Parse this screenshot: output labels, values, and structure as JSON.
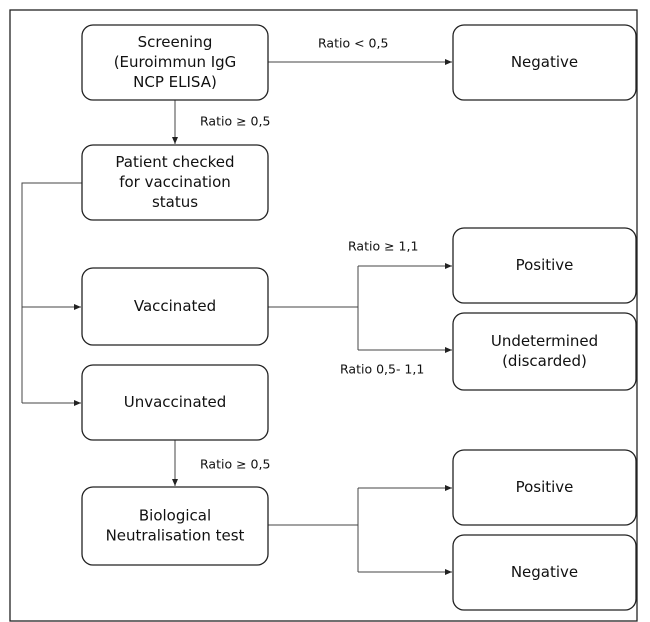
{
  "nodes": [
    {
      "lines": [
        "Screening",
        "(Euroimmun IgG",
        "NCP ELISA)"
      ]
    },
    {
      "lines": [
        "Negative"
      ]
    },
    {
      "lines": [
        "Patient checked",
        "for vaccination",
        "status"
      ]
    },
    {
      "lines": [
        "Vaccinated"
      ]
    },
    {
      "lines": [
        "Unvaccinated"
      ]
    },
    {
      "lines": [
        "Positive"
      ]
    },
    {
      "lines": [
        "Undetermined",
        "(discarded)"
      ]
    },
    {
      "lines": [
        "Biological",
        "Neutralisation test"
      ]
    },
    {
      "lines": [
        "Positive"
      ]
    },
    {
      "lines": [
        "Negative"
      ]
    }
  ],
  "edges": [
    {
      "label": "Ratio < 0,5"
    },
    {
      "label": "Ratio ≥  0,5"
    },
    {
      "label": "Ratio ≥ 1,1"
    },
    {
      "label": "Ratio 0,5- 1,1"
    },
    {
      "label": "Ratio ≥  0,5"
    }
  ]
}
